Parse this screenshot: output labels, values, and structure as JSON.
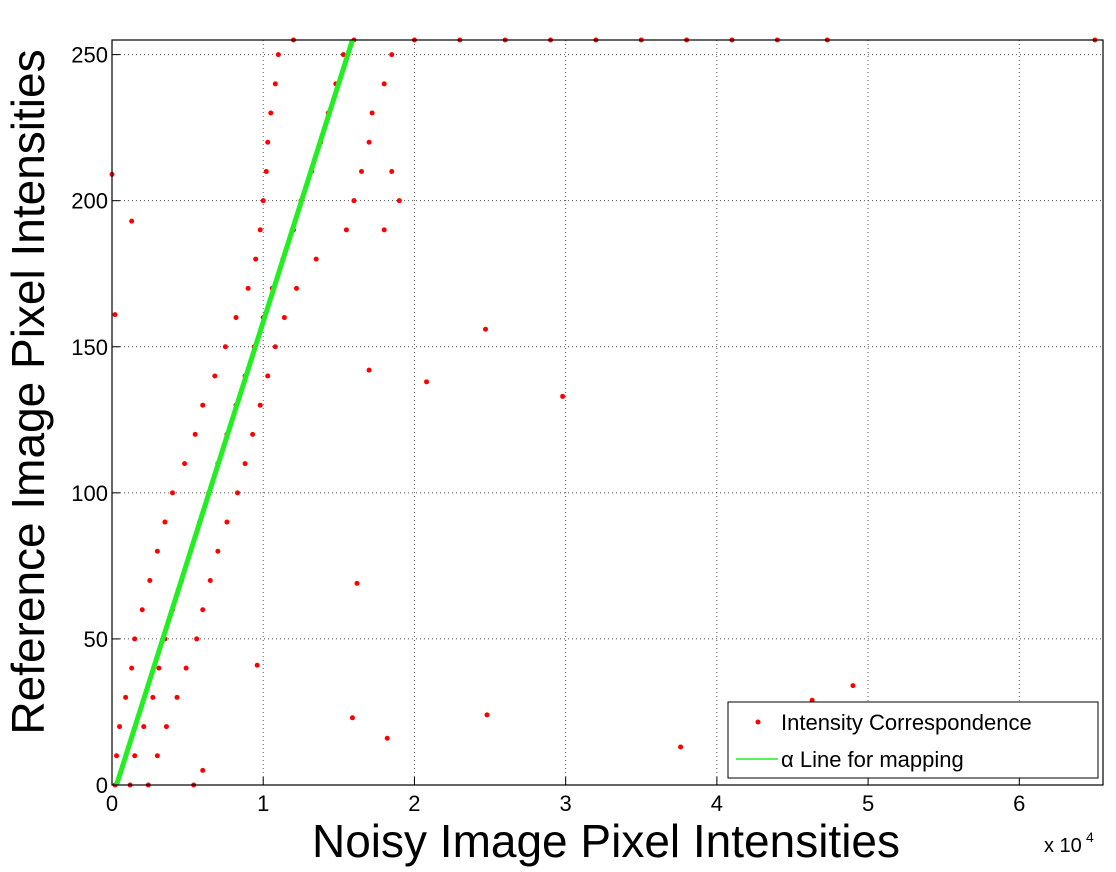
{
  "chart_data": {
    "type": "scatter",
    "x_label": "Noisy Image Pixel Intensities",
    "y_label": "Reference Image Pixel Intensities",
    "x_scale_label": "x 10",
    "x_scale_exponent": "4",
    "xlim": [
      0,
      65535
    ],
    "ylim": [
      0,
      255
    ],
    "xticks": [
      0,
      {
        "value": 10000,
        "label": "1"
      },
      {
        "value": 20000,
        "label": "2"
      },
      {
        "value": 30000,
        "label": "3"
      },
      {
        "value": 40000,
        "label": "4"
      },
      {
        "value": 50000,
        "label": "5"
      },
      {
        "value": 60000,
        "label": "6"
      }
    ],
    "yticks": [
      0,
      50,
      100,
      150,
      200,
      250
    ],
    "grid": true,
    "legend": "southeast",
    "series": [
      {
        "name": "Intensity Correspondence",
        "color": "#ff0000",
        "mode": "markers",
        "x": [
          200,
          1200,
          2400,
          300,
          1500,
          3000,
          500,
          2100,
          3600,
          900,
          2700,
          4300,
          1300,
          3100,
          4900,
          1500,
          3500,
          5600,
          2000,
          4000,
          6000,
          2500,
          4600,
          6500,
          3000,
          5200,
          7000,
          3500,
          5800,
          7600,
          4000,
          6400,
          8300,
          4800,
          7000,
          8800,
          5500,
          7600,
          9300,
          6000,
          8200,
          9800,
          6800,
          8800,
          10300,
          7500,
          9400,
          10800,
          8200,
          10000,
          11400,
          9000,
          10600,
          12200,
          9500,
          11300,
          13500,
          9800,
          12000,
          15500,
          18000,
          10000,
          12500,
          16000,
          19000,
          10200,
          13200,
          16500,
          18500,
          10300,
          13800,
          17000,
          10500,
          14300,
          17200,
          10800,
          14800,
          18000,
          11000,
          15300,
          18500,
          12000,
          16000,
          20000,
          23000,
          26000,
          29000,
          32000,
          35000,
          38000,
          41000,
          44000,
          47300,
          65000,
          16200,
          24700,
          29800,
          20800,
          17000,
          24800,
          15900,
          37600,
          46300,
          49000,
          18200,
          1300,
          0,
          200,
          9600,
          6000,
          5400
        ],
        "y": [
          0,
          0,
          0,
          10,
          10,
          10,
          20,
          20,
          20,
          30,
          30,
          30,
          40,
          40,
          40,
          50,
          50,
          50,
          60,
          60,
          60,
          70,
          70,
          70,
          80,
          80,
          80,
          90,
          90,
          90,
          100,
          100,
          100,
          110,
          110,
          110,
          120,
          120,
          120,
          130,
          130,
          130,
          140,
          140,
          140,
          150,
          150,
          150,
          160,
          160,
          160,
          170,
          170,
          170,
          180,
          180,
          180,
          190,
          190,
          190,
          190,
          200,
          200,
          200,
          200,
          210,
          210,
          210,
          210,
          220,
          220,
          220,
          230,
          230,
          230,
          240,
          240,
          240,
          250,
          250,
          250,
          255,
          255,
          255,
          255,
          255,
          255,
          255,
          255,
          255,
          255,
          255,
          255,
          255,
          69,
          156,
          133,
          138,
          142,
          24,
          23,
          13,
          29,
          34,
          16,
          193,
          209,
          161,
          41,
          5,
          0
        ]
      },
      {
        "name": "α Line for mapping",
        "color": "#22ee22",
        "mode": "line",
        "x": [
          300,
          15900
        ],
        "y": [
          0,
          255
        ]
      }
    ]
  }
}
